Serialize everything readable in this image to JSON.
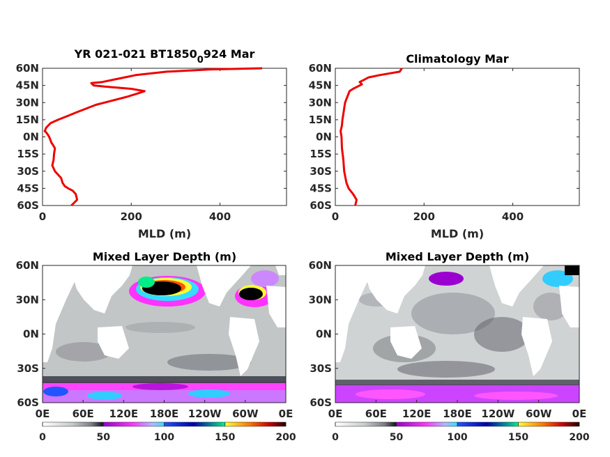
{
  "colors": {
    "profile_line": "#ee0000",
    "land": "#ffffff",
    "colormap": [
      "#ffffff",
      "#c9cccc",
      "#8d8f95",
      "#4a4a55",
      "#1a1a22",
      "#9a00d0",
      "#ff33ff",
      "#cc88ff",
      "#33ddff",
      "#2255ff",
      "#0000aa",
      "#00ee88",
      "#ffff33",
      "#ff7700",
      "#cc0000",
      "#220000"
    ]
  },
  "chart_data": [
    {
      "type": "line",
      "title_main": "YR 021-021 BT1850",
      "title_sub": "0",
      "title_tail": "924 Mar",
      "xlabel": "MLD (m)",
      "xlim": [
        0,
        550
      ],
      "ylim": [
        -60,
        60
      ],
      "xticks": [
        "0",
        "200",
        "400"
      ],
      "xtick_values": [
        0,
        200,
        400
      ],
      "yticks": [
        "60N",
        "45N",
        "30N",
        "15N",
        "0N",
        "15S",
        "30S",
        "45S",
        "60S"
      ],
      "ytick_values": [
        60,
        45,
        30,
        15,
        0,
        -15,
        -30,
        -45,
        -60
      ],
      "series": [
        {
          "x": [
            65,
            78,
            75,
            68,
            58,
            50,
            45,
            42,
            35,
            28,
            22,
            25,
            26,
            28,
            25,
            20,
            18,
            15,
            12,
            8,
            5,
            8,
            18,
            35,
            55,
            80,
            100,
            120,
            150,
            190,
            215,
            230,
            200,
            140,
            115,
            110,
            135,
            160,
            185,
            210,
            280,
            380,
            495
          ],
          "y": [
            -60,
            -55,
            -50,
            -47,
            -45,
            -43,
            -40,
            -36,
            -33,
            -30,
            -25,
            -20,
            -15,
            -10,
            -8,
            -5,
            -3,
            0,
            2,
            4,
            5,
            8,
            12,
            15,
            18,
            22,
            25,
            28,
            31,
            35,
            38,
            40,
            42,
            44,
            45,
            47,
            48,
            50,
            52,
            54,
            57,
            59,
            60
          ]
        }
      ]
    },
    {
      "type": "line",
      "title": "Climatology Mar",
      "xlabel": "MLD (m)",
      "xlim": [
        0,
        550
      ],
      "ylim": [
        -60,
        60
      ],
      "xticks": [
        "0",
        "200",
        "400"
      ],
      "xtick_values": [
        0,
        200,
        400
      ],
      "yticks": [
        "60N",
        "45N",
        "30N",
        "15N",
        "0N",
        "15S",
        "30S",
        "45S",
        "60S"
      ],
      "ytick_values": [
        60,
        45,
        30,
        15,
        0,
        -15,
        -30,
        -45,
        -60
      ],
      "series": [
        {
          "x": [
            45,
            48,
            40,
            30,
            25,
            20,
            18,
            15,
            14,
            12,
            15,
            16,
            18,
            20,
            22,
            25,
            28,
            32,
            40,
            50,
            60,
            55,
            65,
            75,
            100,
            145,
            150
          ],
          "y": [
            -60,
            -55,
            -50,
            -45,
            -40,
            -30,
            -20,
            -10,
            0,
            5,
            10,
            15,
            20,
            25,
            30,
            33,
            36,
            40,
            42,
            44,
            46,
            48,
            50,
            52,
            54,
            57,
            60
          ]
        }
      ]
    },
    {
      "type": "heatmap",
      "title": "Mixed Layer Depth (m)",
      "yticks": [
        "60N",
        "30N",
        "0N",
        "30S",
        "60S"
      ],
      "xticks": [
        "0E",
        "60E",
        "120E",
        "180E",
        "120W",
        "60W",
        "0E"
      ],
      "colorbar_ticks": [
        "0",
        "50",
        "100",
        "150",
        "200"
      ],
      "colorbar_range": [
        0,
        200
      ]
    },
    {
      "type": "heatmap",
      "title": "Mixed Layer Depth (m)",
      "yticks": [
        "60N",
        "30N",
        "0N",
        "30S",
        "60S"
      ],
      "xticks": [
        "0E",
        "60E",
        "120E",
        "180E",
        "120W",
        "60W",
        "0E"
      ],
      "colorbar_ticks": [
        "0",
        "50",
        "100",
        "150",
        "200"
      ],
      "colorbar_range": [
        0,
        200
      ]
    }
  ]
}
